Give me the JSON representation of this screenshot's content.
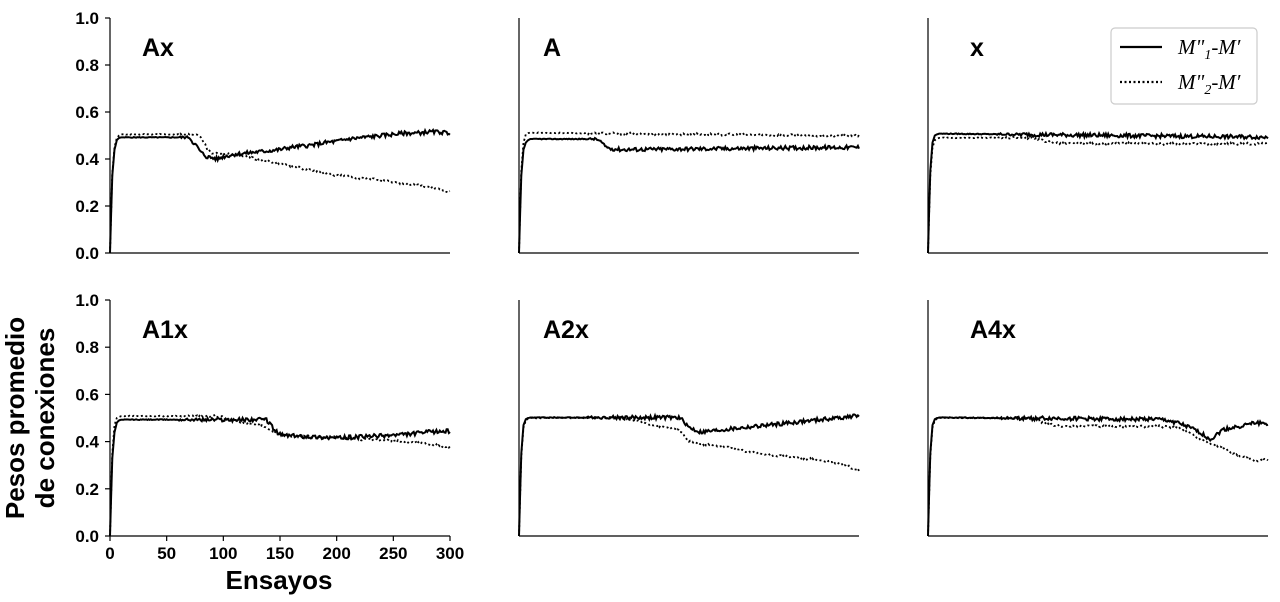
{
  "chart_data": {
    "type": "line",
    "xlabel": "Ensayos",
    "ylabel_lines": [
      "Pesos promedio",
      "de conexiones"
    ],
    "xlim": [
      0,
      300
    ],
    "ylim": [
      0,
      1
    ],
    "xticks": [
      "0",
      "50",
      "100",
      "150",
      "200",
      "250",
      "300"
    ],
    "yticks": [
      "0.0",
      "0.2",
      "0.4",
      "0.6",
      "0.8",
      "1.0"
    ],
    "grid": false,
    "legend": {
      "placement": "top-right",
      "entries": [
        {
          "label": "M\"1-M′",
          "style": "solid"
        },
        {
          "label": "M\"2-M′",
          "style": "dotted"
        }
      ]
    },
    "panels": [
      {
        "title": "Ax",
        "series": [
          {
            "style": "solid",
            "points": [
              [
                0,
                0
              ],
              [
                2,
                0.33
              ],
              [
                4,
                0.44
              ],
              [
                6,
                0.48
              ],
              [
                8,
                0.49
              ],
              [
                10,
                0.492
              ],
              [
                70,
                0.492
              ],
              [
                73,
                0.47
              ],
              [
                76,
                0.46
              ],
              [
                80,
                0.43
              ],
              [
                85,
                0.41
              ],
              [
                90,
                0.405
              ],
              [
                95,
                0.4
              ],
              [
                100,
                0.41
              ],
              [
                110,
                0.42
              ],
              [
                120,
                0.425
              ],
              [
                130,
                0.43
              ],
              [
                140,
                0.435
              ],
              [
                150,
                0.44
              ],
              [
                160,
                0.45
              ],
              [
                170,
                0.455
              ],
              [
                180,
                0.46
              ],
              [
                190,
                0.47
              ],
              [
                200,
                0.475
              ],
              [
                210,
                0.485
              ],
              [
                220,
                0.49
              ],
              [
                230,
                0.495
              ],
              [
                240,
                0.5
              ],
              [
                250,
                0.505
              ],
              [
                260,
                0.51
              ],
              [
                270,
                0.51
              ],
              [
                280,
                0.515
              ],
              [
                290,
                0.515
              ],
              [
                300,
                0.51
              ]
            ]
          },
          {
            "style": "dotted",
            "points": [
              [
                0,
                0
              ],
              [
                2,
                0.34
              ],
              [
                4,
                0.45
              ],
              [
                6,
                0.49
              ],
              [
                8,
                0.5
              ],
              [
                10,
                0.505
              ],
              [
                78,
                0.505
              ],
              [
                82,
                0.48
              ],
              [
                86,
                0.44
              ],
              [
                90,
                0.425
              ],
              [
                100,
                0.425
              ],
              [
                110,
                0.42
              ],
              [
                120,
                0.41
              ],
              [
                130,
                0.4
              ],
              [
                140,
                0.39
              ],
              [
                150,
                0.38
              ],
              [
                160,
                0.37
              ],
              [
                170,
                0.36
              ],
              [
                180,
                0.35
              ],
              [
                190,
                0.34
              ],
              [
                200,
                0.33
              ],
              [
                210,
                0.325
              ],
              [
                220,
                0.32
              ],
              [
                230,
                0.315
              ],
              [
                240,
                0.31
              ],
              [
                250,
                0.3
              ],
              [
                260,
                0.295
              ],
              [
                270,
                0.29
              ],
              [
                280,
                0.28
              ],
              [
                290,
                0.27
              ],
              [
                300,
                0.26
              ]
            ]
          }
        ]
      },
      {
        "title": "A",
        "series": [
          {
            "style": "solid",
            "points": [
              [
                0,
                0
              ],
              [
                2,
                0.33
              ],
              [
                4,
                0.44
              ],
              [
                6,
                0.47
              ],
              [
                8,
                0.48
              ],
              [
                10,
                0.485
              ],
              [
                68,
                0.485
              ],
              [
                72,
                0.475
              ],
              [
                76,
                0.455
              ],
              [
                80,
                0.445
              ],
              [
                90,
                0.44
              ],
              [
                300,
                0.45
              ]
            ]
          },
          {
            "style": "dotted",
            "points": [
              [
                0,
                0
              ],
              [
                2,
                0.35
              ],
              [
                4,
                0.47
              ],
              [
                6,
                0.505
              ],
              [
                8,
                0.51
              ],
              [
                10,
                0.512
              ],
              [
                300,
                0.498
              ]
            ]
          }
        ]
      },
      {
        "title": "x",
        "series": [
          {
            "style": "solid",
            "points": [
              [
                0,
                0
              ],
              [
                2,
                0.35
              ],
              [
                4,
                0.47
              ],
              [
                6,
                0.5
              ],
              [
                8,
                0.505
              ],
              [
                10,
                0.508
              ],
              [
                300,
                0.493
              ]
            ]
          },
          {
            "style": "dotted",
            "points": [
              [
                0,
                0
              ],
              [
                2,
                0.33
              ],
              [
                4,
                0.45
              ],
              [
                6,
                0.48
              ],
              [
                8,
                0.487
              ],
              [
                10,
                0.49
              ],
              [
                95,
                0.49
              ],
              [
                100,
                0.48
              ],
              [
                110,
                0.47
              ],
              [
                120,
                0.465
              ],
              [
                300,
                0.465
              ]
            ]
          }
        ]
      },
      {
        "title": "A1x",
        "series": [
          {
            "style": "solid",
            "points": [
              [
                0,
                0
              ],
              [
                2,
                0.33
              ],
              [
                4,
                0.44
              ],
              [
                6,
                0.48
              ],
              [
                8,
                0.49
              ],
              [
                10,
                0.493
              ],
              [
                138,
                0.493
              ],
              [
                142,
                0.47
              ],
              [
                146,
                0.445
              ],
              [
                150,
                0.43
              ],
              [
                160,
                0.425
              ],
              [
                180,
                0.42
              ],
              [
                200,
                0.415
              ],
              [
                220,
                0.42
              ],
              [
                240,
                0.425
              ],
              [
                260,
                0.43
              ],
              [
                280,
                0.44
              ],
              [
                300,
                0.445
              ]
            ]
          },
          {
            "style": "dotted",
            "points": [
              [
                0,
                0
              ],
              [
                2,
                0.35
              ],
              [
                4,
                0.47
              ],
              [
                6,
                0.5
              ],
              [
                8,
                0.505
              ],
              [
                10,
                0.508
              ],
              [
                98,
                0.508
              ],
              [
                102,
                0.495
              ],
              [
                110,
                0.485
              ],
              [
                120,
                0.48
              ],
              [
                130,
                0.475
              ],
              [
                140,
                0.45
              ],
              [
                150,
                0.43
              ],
              [
                160,
                0.425
              ],
              [
                180,
                0.42
              ],
              [
                200,
                0.42
              ],
              [
                220,
                0.41
              ],
              [
                240,
                0.405
              ],
              [
                260,
                0.4
              ],
              [
                280,
                0.39
              ],
              [
                300,
                0.375
              ]
            ]
          }
        ]
      },
      {
        "title": "A2x",
        "series": [
          {
            "style": "solid",
            "points": [
              [
                0,
                0
              ],
              [
                2,
                0.35
              ],
              [
                4,
                0.47
              ],
              [
                6,
                0.495
              ],
              [
                8,
                0.5
              ],
              [
                10,
                0.502
              ],
              [
                140,
                0.502
              ],
              [
                145,
                0.49
              ],
              [
                150,
                0.46
              ],
              [
                160,
                0.44
              ],
              [
                170,
                0.445
              ],
              [
                180,
                0.45
              ],
              [
                190,
                0.455
              ],
              [
                200,
                0.46
              ],
              [
                210,
                0.465
              ],
              [
                220,
                0.47
              ],
              [
                230,
                0.475
              ],
              [
                240,
                0.48
              ],
              [
                250,
                0.485
              ],
              [
                260,
                0.49
              ],
              [
                270,
                0.495
              ],
              [
                280,
                0.5
              ],
              [
                290,
                0.505
              ],
              [
                300,
                0.51
              ]
            ]
          },
          {
            "style": "dotted",
            "points": [
              [
                0,
                0
              ],
              [
                2,
                0.34
              ],
              [
                4,
                0.46
              ],
              [
                6,
                0.49
              ],
              [
                8,
                0.497
              ],
              [
                10,
                0.5
              ],
              [
                95,
                0.5
              ],
              [
                100,
                0.49
              ],
              [
                110,
                0.48
              ],
              [
                120,
                0.47
              ],
              [
                130,
                0.46
              ],
              [
                140,
                0.45
              ],
              [
                145,
                0.43
              ],
              [
                150,
                0.4
              ],
              [
                160,
                0.39
              ],
              [
                180,
                0.38
              ],
              [
                200,
                0.36
              ],
              [
                220,
                0.345
              ],
              [
                240,
                0.335
              ],
              [
                260,
                0.325
              ],
              [
                280,
                0.31
              ],
              [
                300,
                0.28
              ]
            ]
          }
        ]
      },
      {
        "title": "A4x",
        "series": [
          {
            "style": "solid",
            "points": [
              [
                0,
                0
              ],
              [
                2,
                0.35
              ],
              [
                4,
                0.47
              ],
              [
                6,
                0.495
              ],
              [
                8,
                0.5
              ],
              [
                10,
                0.502
              ],
              [
                200,
                0.495
              ],
              [
                210,
                0.49
              ],
              [
                220,
                0.48
              ],
              [
                230,
                0.46
              ],
              [
                240,
                0.44
              ],
              [
                245,
                0.42
              ],
              [
                250,
                0.41
              ],
              [
                255,
                0.43
              ],
              [
                260,
                0.45
              ],
              [
                270,
                0.46
              ],
              [
                280,
                0.47
              ],
              [
                290,
                0.48
              ],
              [
                300,
                0.475
              ]
            ]
          },
          {
            "style": "dotted",
            "points": [
              [
                0,
                0
              ],
              [
                2,
                0.34
              ],
              [
                4,
                0.46
              ],
              [
                6,
                0.49
              ],
              [
                8,
                0.497
              ],
              [
                10,
                0.5
              ],
              [
                95,
                0.5
              ],
              [
                100,
                0.48
              ],
              [
                110,
                0.47
              ],
              [
                120,
                0.465
              ],
              [
                200,
                0.465
              ],
              [
                220,
                0.46
              ],
              [
                230,
                0.44
              ],
              [
                240,
                0.41
              ],
              [
                250,
                0.39
              ],
              [
                260,
                0.37
              ],
              [
                270,
                0.35
              ],
              [
                280,
                0.33
              ],
              [
                290,
                0.315
              ],
              [
                300,
                0.325
              ]
            ]
          }
        ]
      }
    ]
  }
}
